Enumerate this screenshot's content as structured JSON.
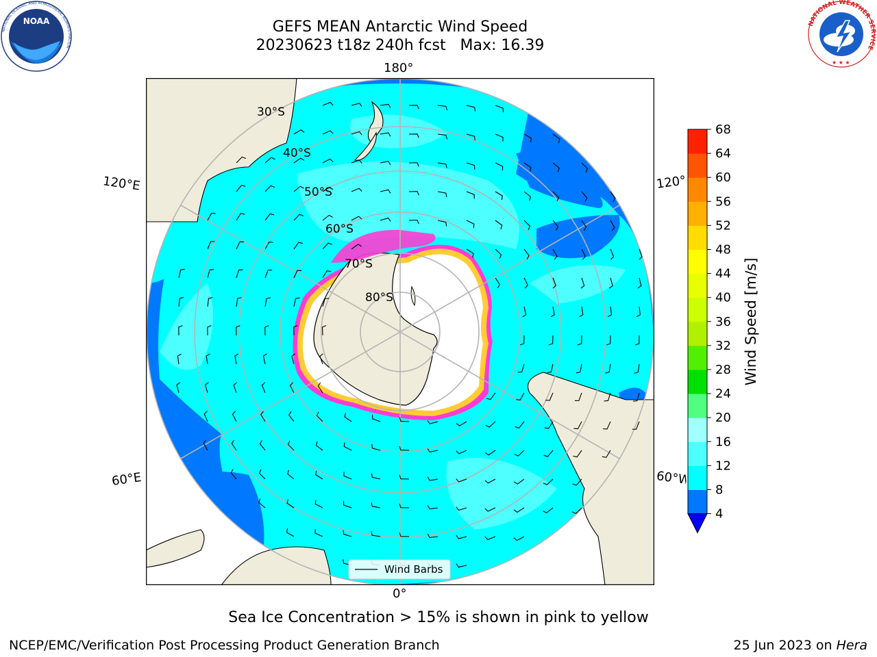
{
  "header": {
    "title_line1": "GEFS MEAN Antarctic Wind Speed",
    "title_line2": "20230623 t18z 240h fcst   Max: 16.39"
  },
  "logos": {
    "noaa_text": "NOAA",
    "noaa_ring_text": "NATIONAL OCEANIC AND ATMOSPHERIC ADMINISTRATION",
    "noaa_ring_text_bottom": "U.S. DEPARTMENT OF COMMERCE",
    "nws_ring_text": "NATIONAL WEATHER SERVICE"
  },
  "map": {
    "longitude_labels": {
      "top": "180°",
      "bottom": "0°",
      "upper_left": "120°E",
      "upper_right": "120°W",
      "lower_left": "60°E",
      "lower_right": "60°W"
    },
    "latitude_labels": [
      "30°S",
      "40°S",
      "50°S",
      "60°S",
      "70°S",
      "80°S"
    ],
    "legend_label": "Wind Barbs",
    "colors": {
      "land": "#efecdb",
      "ice_shelf": "#ffffff",
      "sea_ice_pink": "#ff3cd2",
      "sea_ice_yellow": "#ffcc33",
      "grid": "#b4b4b4"
    }
  },
  "colorbar": {
    "label": "Wind Speed [m/s]",
    "ticks": [
      "4",
      "8",
      "12",
      "16",
      "20",
      "24",
      "28",
      "32",
      "36",
      "40",
      "44",
      "48",
      "52",
      "56",
      "60",
      "64",
      "68"
    ],
    "colors": [
      "#0078ff",
      "#00ffff",
      "#4dffff",
      "#a0ffff",
      "#50ff80",
      "#00e000",
      "#50f000",
      "#b0f000",
      "#ccff00",
      "#e8ff00",
      "#ffff00",
      "#ffdd00",
      "#ffb000",
      "#ff8800",
      "#ff5500",
      "#ff2200"
    ],
    "under_color": "#0000ff"
  },
  "caption": "Sea Ice Concentration > 15% is shown in pink to yellow",
  "footer": {
    "left": "NCEP/EMC/Verification Post Processing Product Generation Branch",
    "right_date": "25 Jun 2023 on ",
    "right_host": "Hera"
  }
}
